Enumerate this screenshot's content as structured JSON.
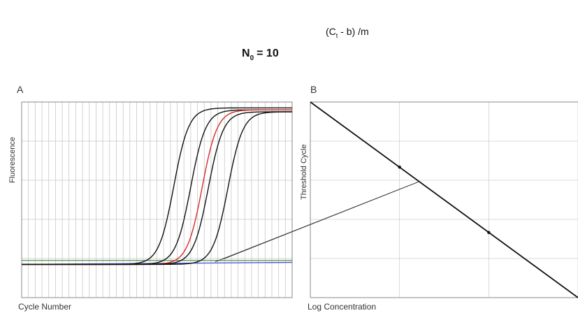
{
  "formula": {
    "base": "N",
    "base_subscript": "0",
    "equals": "= 10",
    "exponent_open": "(C",
    "exponent_subscript": "t",
    "exponent_rest": " - b) /m"
  },
  "chart_data": [
    {
      "type": "line",
      "panel_label": "A",
      "xlabel": "Cycle Number",
      "ylabel": "Fluorescence",
      "grid": true,
      "xlim": [
        0,
        40
      ],
      "ylim": [
        0,
        1
      ],
      "threshold": {
        "y": 0.19,
        "color": "#3a8a3a"
      },
      "background_line": {
        "color": "#5b4fd6",
        "y_start": 0.17,
        "y_end": 0.18
      },
      "series": [
        {
          "color": "#111111",
          "midpoint": 22.5,
          "slope": 0.9,
          "baseline": 0.17,
          "plateau": 0.97
        },
        {
          "color": "#111111",
          "midpoint": 25.0,
          "slope": 0.9,
          "baseline": 0.17,
          "plateau": 0.96
        },
        {
          "color": "#d42a2a",
          "midpoint": 26.7,
          "slope": 0.9,
          "baseline": 0.17,
          "plateau": 0.96
        },
        {
          "color": "#111111",
          "midpoint": 27.6,
          "slope": 0.9,
          "baseline": 0.17,
          "plateau": 0.95
        },
        {
          "color": "#111111",
          "midpoint": 30.5,
          "slope": 0.9,
          "baseline": 0.17,
          "plateau": 0.95
        }
      ]
    },
    {
      "type": "scatter",
      "panel_label": "B",
      "xlabel": "Log Concentration",
      "ylabel": "Threshold Cycle",
      "grid": true,
      "xlim": [
        0,
        3
      ],
      "ylim": [
        0,
        1
      ],
      "fit_line": {
        "x": [
          0,
          3
        ],
        "y": [
          1,
          0
        ]
      },
      "points": [
        {
          "x": 1.0,
          "y": 0.667
        },
        {
          "x": 2.0,
          "y": 0.333
        }
      ]
    }
  ]
}
